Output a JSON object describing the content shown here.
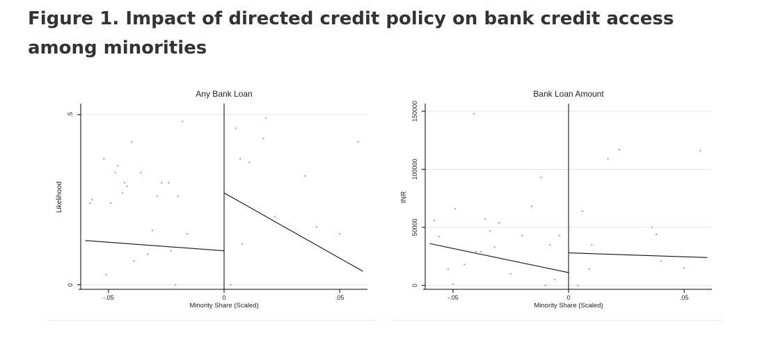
{
  "figure": {
    "title": "Figure 1. Impact of directed credit policy on bank credit access among minorities"
  },
  "chart_data": [
    {
      "type": "scatter",
      "title": "Any Bank Loan",
      "xlabel": "Minority Share (Scaled)",
      "ylabel": "Likelihood",
      "xlim": [
        -0.062,
        0.062
      ],
      "ylim": [
        -0.005,
        0.52
      ],
      "xticks": [
        -0.05,
        0,
        0.05
      ],
      "xtick_labels": [
        "-.05",
        "0",
        ".05"
      ],
      "yticks": [
        0,
        0.5
      ],
      "ytick_labels": [
        "0",
        ".5"
      ],
      "grid": true,
      "cutoff": 0,
      "points": [
        [
          -0.058,
          0.24
        ],
        [
          -0.057,
          0.25
        ],
        [
          -0.052,
          0.37
        ],
        [
          -0.051,
          0.03
        ],
        [
          -0.049,
          0.24
        ],
        [
          -0.047,
          0.33
        ],
        [
          -0.046,
          0.35
        ],
        [
          -0.044,
          0.27
        ],
        [
          -0.043,
          0.3
        ],
        [
          -0.042,
          0.29
        ],
        [
          -0.04,
          0.42
        ],
        [
          -0.039,
          0.07
        ],
        [
          -0.036,
          0.33
        ],
        [
          -0.033,
          0.09
        ],
        [
          -0.031,
          0.16
        ],
        [
          -0.029,
          0.26
        ],
        [
          -0.027,
          0.3
        ],
        [
          -0.024,
          0.3
        ],
        [
          -0.023,
          0.1
        ],
        [
          -0.021,
          0.0
        ],
        [
          -0.02,
          0.26
        ],
        [
          -0.018,
          0.48
        ],
        [
          -0.016,
          0.15
        ],
        [
          0.003,
          0.0
        ],
        [
          0.005,
          0.46
        ],
        [
          0.007,
          0.37
        ],
        [
          0.008,
          0.12
        ],
        [
          0.011,
          0.36
        ],
        [
          0.017,
          0.43
        ],
        [
          0.018,
          0.49
        ],
        [
          0.022,
          0.2
        ],
        [
          0.035,
          0.32
        ],
        [
          0.04,
          0.17
        ],
        [
          0.05,
          0.15
        ],
        [
          0.058,
          0.42
        ]
      ],
      "fit_lines": [
        {
          "x": [
            -0.06,
            0
          ],
          "y": [
            0.13,
            0.1
          ]
        },
        {
          "x": [
            0,
            0.06
          ],
          "y": [
            0.27,
            0.04
          ]
        }
      ]
    },
    {
      "type": "scatter",
      "title": "Bank Loan Amount",
      "xlabel": "Minority Share (Scaled)",
      "ylabel": "INR",
      "xlim": [
        -0.062,
        0.062
      ],
      "ylim": [
        -1000,
        153000
      ],
      "xticks": [
        -0.05,
        0,
        0.05
      ],
      "xtick_labels": [
        "-.05",
        "0",
        ".05"
      ],
      "yticks": [
        0,
        50000,
        100000,
        150000
      ],
      "ytick_labels": [
        "0",
        "50000",
        "100000",
        "150000"
      ],
      "grid": true,
      "cutoff": 0,
      "points": [
        [
          -0.058,
          56000
        ],
        [
          -0.056,
          42000
        ],
        [
          -0.052,
          14000
        ],
        [
          -0.05,
          1000
        ],
        [
          -0.049,
          66000
        ],
        [
          -0.045,
          18000
        ],
        [
          -0.041,
          148000
        ],
        [
          -0.04,
          29000
        ],
        [
          -0.038,
          29000
        ],
        [
          -0.036,
          57000
        ],
        [
          -0.034,
          47000
        ],
        [
          -0.032,
          33000
        ],
        [
          -0.03,
          54000
        ],
        [
          -0.025,
          10000
        ],
        [
          -0.02,
          43000
        ],
        [
          -0.016,
          68000
        ],
        [
          -0.012,
          93000
        ],
        [
          -0.01,
          0
        ],
        [
          -0.008,
          35000
        ],
        [
          -0.006,
          5000
        ],
        [
          -0.004,
          43000
        ],
        [
          0.004,
          0
        ],
        [
          0.006,
          64000
        ],
        [
          0.009,
          14000
        ],
        [
          0.01,
          35000
        ],
        [
          0.017,
          109000
        ],
        [
          0.022,
          117000
        ],
        [
          0.036,
          50000
        ],
        [
          0.038,
          44000
        ],
        [
          0.04,
          21000
        ],
        [
          0.05,
          15000
        ],
        [
          0.057,
          116000
        ]
      ],
      "fit_lines": [
        {
          "x": [
            -0.06,
            0
          ],
          "y": [
            36000,
            11000
          ]
        },
        {
          "x": [
            0,
            0.06
          ],
          "y": [
            28000,
            24000
          ]
        }
      ]
    }
  ]
}
